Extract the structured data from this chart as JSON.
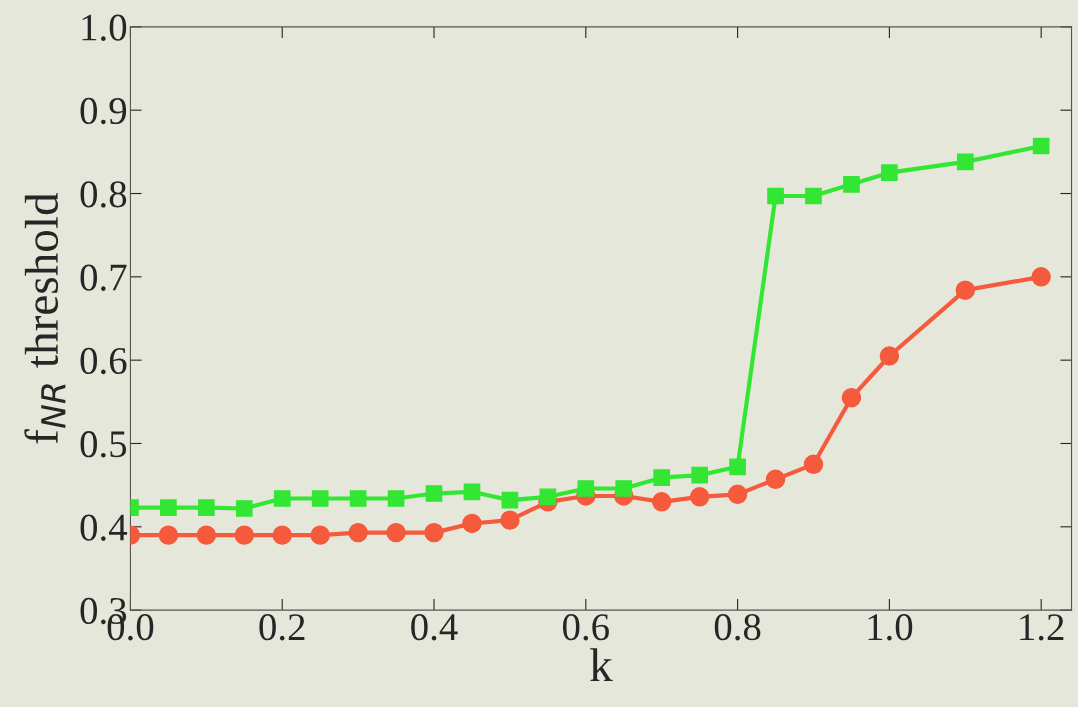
{
  "chart_data": {
    "type": "line",
    "xlabel": "k",
    "ylabel": "f$_{NR}$ threshold",
    "x": [
      0,
      0.05,
      0.1,
      0.15,
      0.2,
      0.25,
      0.3,
      0.35,
      0.4,
      0.45,
      0.5,
      0.55,
      0.6,
      0.65,
      0.7,
      0.75,
      0.8,
      0.85,
      0.9,
      0.95,
      1.0,
      1.1,
      1.2
    ],
    "series": [
      {
        "color": "#33e633",
        "marker": "square",
        "values": [
          0.423,
          0.423,
          0.423,
          0.422,
          0.434,
          0.434,
          0.434,
          0.434,
          0.44,
          0.442,
          0.432,
          0.436,
          0.446,
          0.446,
          0.459,
          0.462,
          0.472,
          0.797,
          0.797,
          0.811,
          0.825,
          0.838,
          0.857
        ]
      },
      {
        "color": "#f55a3c",
        "marker": "circle",
        "values": [
          0.39,
          0.39,
          0.39,
          0.39,
          0.39,
          0.39,
          0.393,
          0.393,
          0.393,
          0.404,
          0.408,
          0.43,
          0.437,
          0.437,
          0.43,
          0.436,
          0.439,
          0.457,
          0.475,
          0.555,
          0.605,
          0.684,
          0.7
        ]
      }
    ],
    "xlim": [
      0,
      1.24
    ],
    "ylim": [
      0.3,
      1.0
    ],
    "xticks": [
      {
        "value": 0,
        "label": "0.0"
      },
      0.2,
      0.4,
      0.6,
      0.8,
      {
        "value": 1,
        "label": "1.0"
      },
      1.2
    ],
    "yticks": [
      0.3,
      0.4,
      0.5,
      0.6,
      0.7,
      0.8,
      0.9,
      {
        "value": 1,
        "label": "1.0"
      }
    ],
    "grid": false,
    "legend": false,
    "line_style": "solid"
  }
}
